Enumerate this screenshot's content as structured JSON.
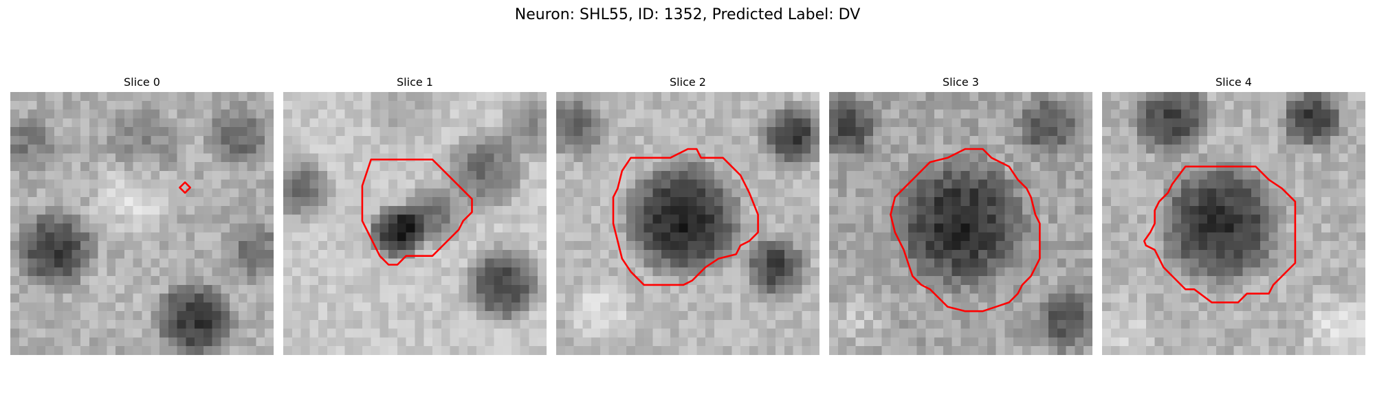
{
  "figure": {
    "title": "Neuron: SHL55, ID: 1352, Predicted Label: DV"
  },
  "colors": {
    "contour": "#ff0000",
    "colormap": "grayscale"
  },
  "panels": [
    {
      "title": "Slice 0",
      "contour_shown": "small"
    },
    {
      "title": "Slice 1",
      "contour_shown": "medium"
    },
    {
      "title": "Slice 2",
      "contour_shown": "large"
    },
    {
      "title": "Slice 3",
      "contour_shown": "large"
    },
    {
      "title": "Slice 4",
      "contour_shown": "large"
    }
  ]
}
